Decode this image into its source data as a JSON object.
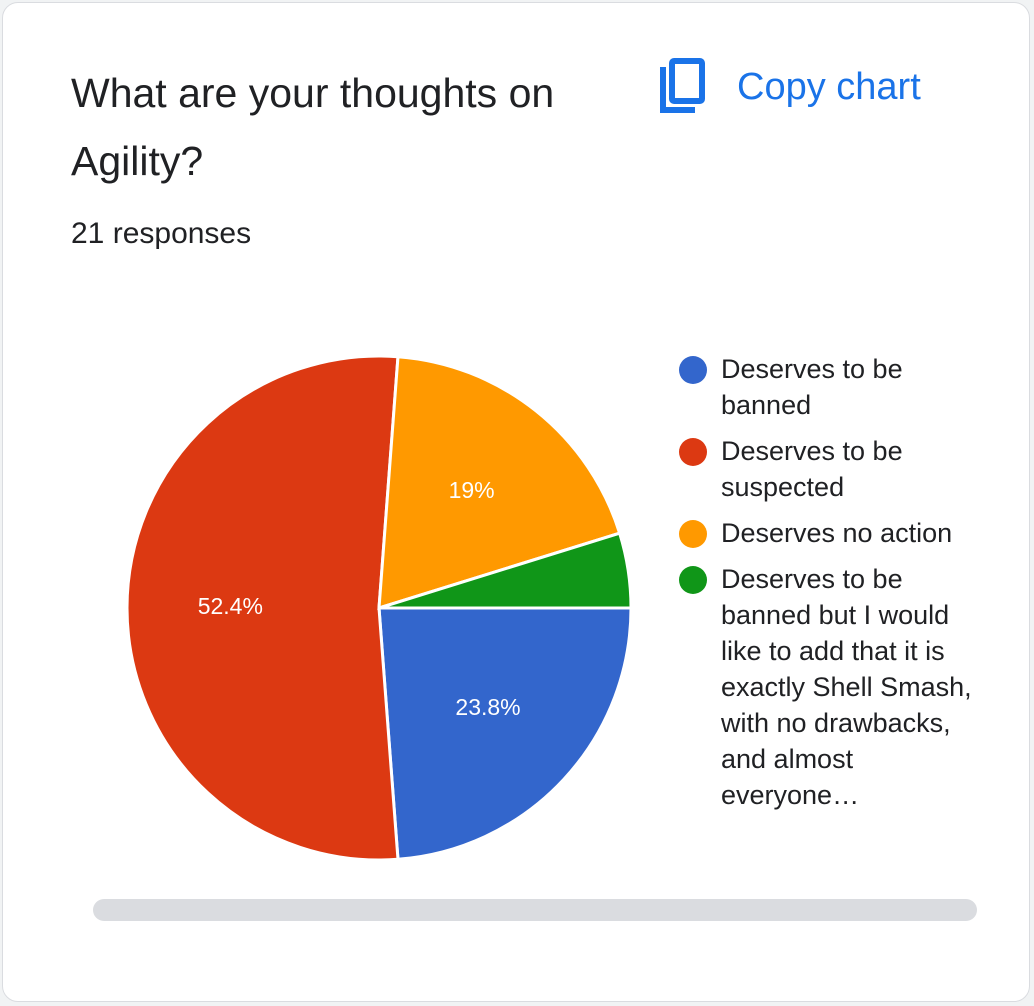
{
  "card": {
    "title": "What are your thoughts on Agility?",
    "responses": "21 responses",
    "copy_label": "Copy chart",
    "copy_icon": "content-copy-icon",
    "accent_color": "#1a73e8"
  },
  "chart_data": {
    "type": "pie",
    "title": "",
    "total_responses": 21,
    "legend_position": "right",
    "slices": [
      {
        "label": "Deserves to be banned",
        "percent": 23.8,
        "data_label": "23.8%",
        "color": "#3366cc"
      },
      {
        "label": "Deserves to be suspected",
        "percent": 52.4,
        "data_label": "52.4%",
        "color": "#dc3912"
      },
      {
        "label": "Deserves no action",
        "percent": 19.0,
        "data_label": "19%",
        "color": "#ff9900"
      },
      {
        "label": "Deserves to be banned but I would like to add that it is exactly Shell Smash, with no drawbacks, and almost everyone…",
        "percent": 4.8,
        "data_label": "",
        "color": "#109618"
      }
    ]
  }
}
